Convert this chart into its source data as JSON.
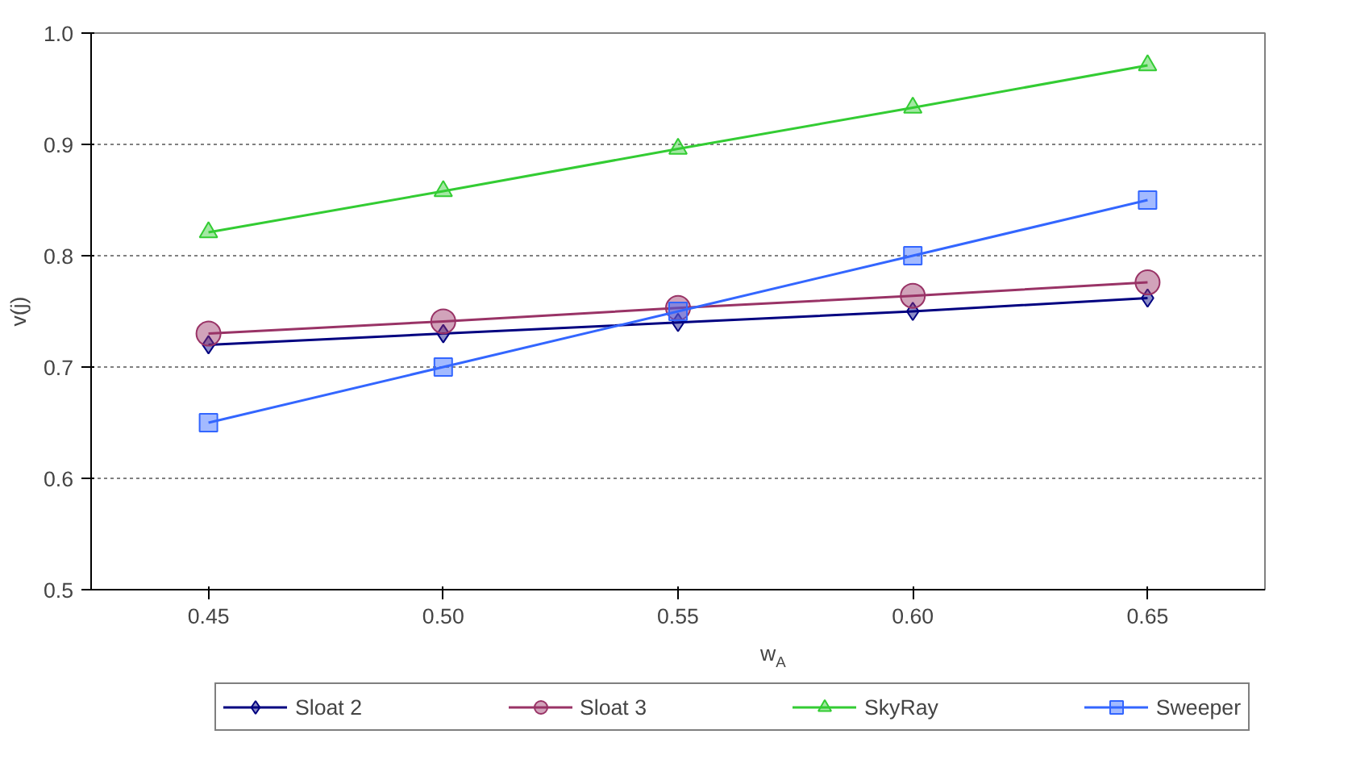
{
  "chart_data": {
    "type": "line",
    "xlabel": "w$_{A}$",
    "ylabel": "v(j)",
    "categories": [
      "0.45",
      "0.50",
      "0.55",
      "0.60",
      "0.65"
    ],
    "ylim": [
      0.5,
      1.0
    ],
    "yticks": [
      {
        "value": 0.5,
        "label": "0.5"
      },
      {
        "value": 0.6,
        "label": "0.6"
      },
      {
        "value": 0.7,
        "label": "0.7"
      },
      {
        "value": 0.8,
        "label": "0.8"
      },
      {
        "value": 0.9,
        "label": "0.9"
      },
      {
        "value": 1.0,
        "label": "1.0"
      }
    ],
    "grid": "y",
    "legend": "bottom",
    "series": [
      {
        "name": "Sloat 2",
        "color": "#000080",
        "marker": "diamond",
        "values": [
          0.72,
          0.73,
          0.74,
          0.75,
          0.762
        ]
      },
      {
        "name": "Sloat 3",
        "color": "#993366",
        "marker": "circle",
        "values": [
          0.73,
          0.741,
          0.753,
          0.764,
          0.776
        ]
      },
      {
        "name": "SkyRay",
        "color": "#33cc33",
        "marker": "triangle",
        "values": [
          0.821,
          0.858,
          0.896,
          0.933,
          0.971
        ]
      },
      {
        "name": "Sweeper",
        "color": "#3366ff",
        "marker": "square",
        "values": [
          0.65,
          0.7,
          0.75,
          0.8,
          0.85
        ]
      }
    ]
  }
}
